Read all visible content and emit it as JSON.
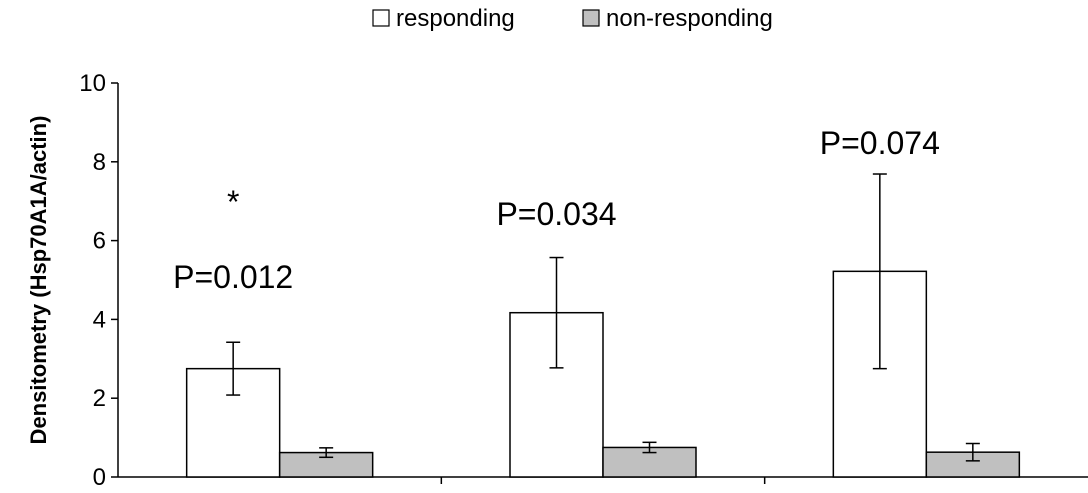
{
  "chart_data": {
    "type": "bar",
    "categories": [
      "",
      "",
      ""
    ],
    "series": [
      {
        "name": "responding",
        "color": "#ffffff",
        "values": [
          2.75,
          4.17,
          5.22
        ],
        "error": [
          0.67,
          1.4,
          2.47
        ]
      },
      {
        "name": "non-responding",
        "color": "#c0c0c0",
        "values": [
          0.62,
          0.75,
          0.63
        ],
        "error": [
          0.12,
          0.13,
          0.22
        ]
      }
    ],
    "ylabel": "Densitometry (Hsp70A1A/actin)",
    "ylim": [
      0,
      10
    ],
    "yticks": [
      0,
      2,
      4,
      6,
      8,
      10
    ],
    "legend": "top-center",
    "annotations": [
      {
        "text": "*",
        "category": 0,
        "y": 7.0
      },
      {
        "text": "P=0.012",
        "category": 0,
        "y": 5.1
      },
      {
        "text": "P=0.034",
        "category": 1,
        "y": 6.7
      },
      {
        "text": "P=0.074",
        "category": 2,
        "y": 8.5
      }
    ]
  }
}
